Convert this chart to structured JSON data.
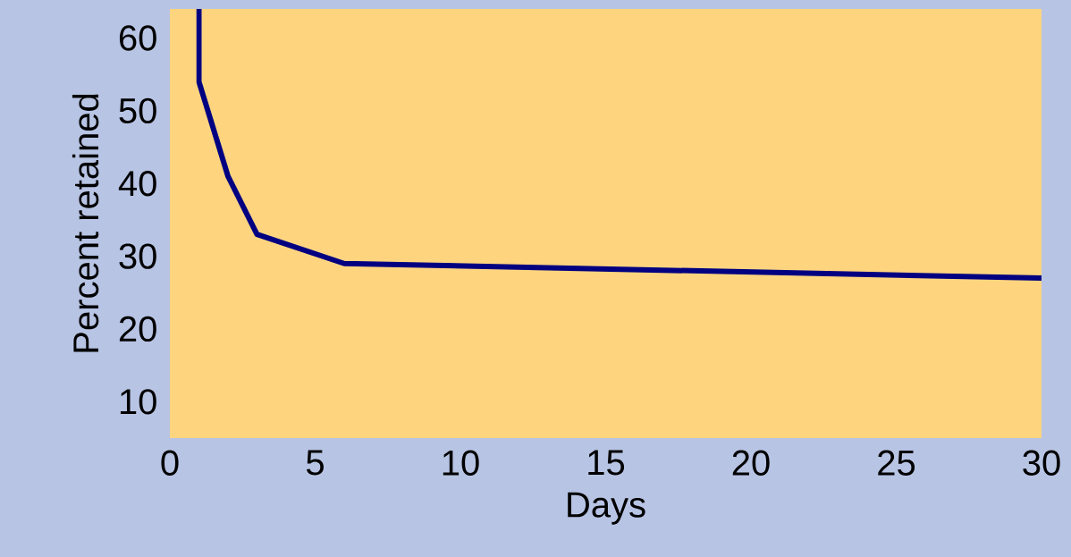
{
  "chart_data": {
    "type": "line",
    "xlabel": "Days",
    "ylabel": "Percent retained",
    "x": [
      1,
      1,
      2,
      3,
      6,
      30
    ],
    "values": [
      64,
      54,
      41,
      33,
      29,
      27
    ],
    "color": "#000080",
    "xlim": [
      0,
      30
    ],
    "ylim": [
      5,
      64
    ],
    "xticks": [
      0,
      5,
      10,
      15,
      20,
      25,
      30
    ],
    "yticks": [
      10,
      20,
      30,
      40,
      50,
      60
    ]
  }
}
